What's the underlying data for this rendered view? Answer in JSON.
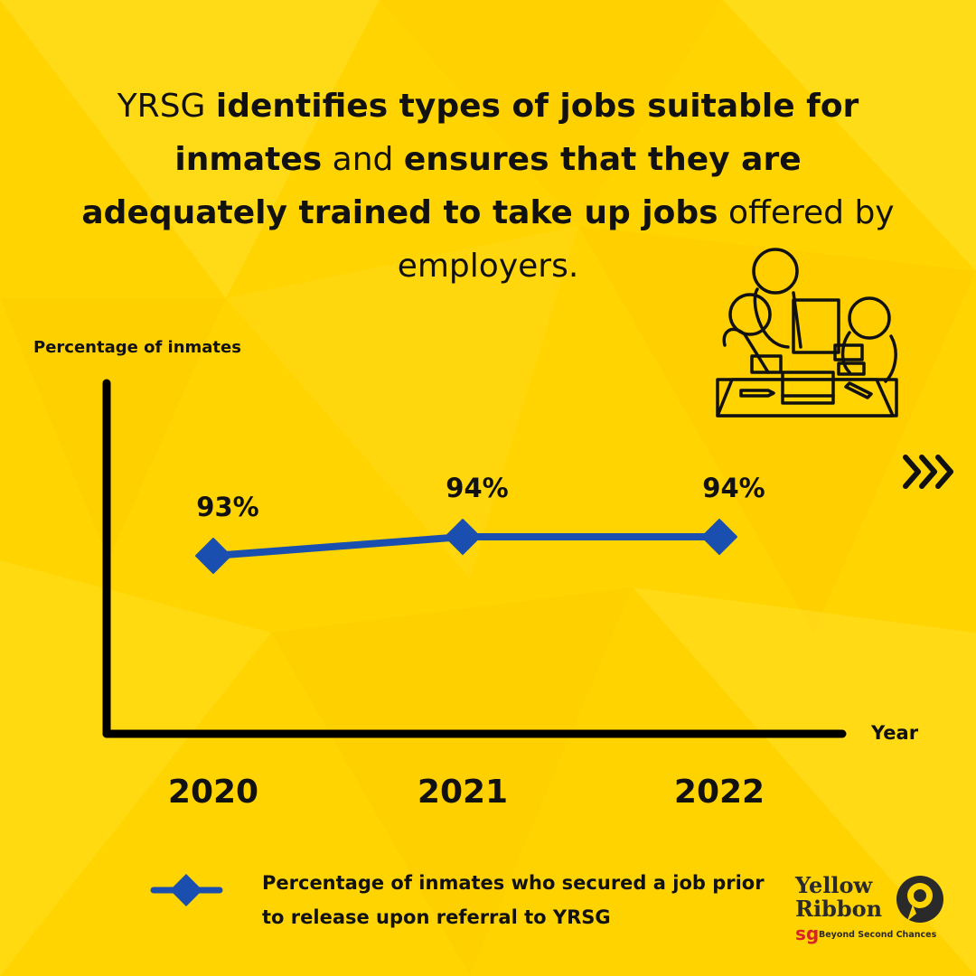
{
  "headline": {
    "part1": "YRSG ",
    "part2": "identifies types of jobs suitable for inmates",
    "part3": " and ",
    "part4": "ensures that they are adequately trained to take up jobs",
    "part5": " offered by employers."
  },
  "chart_data": {
    "type": "line",
    "title": "",
    "xlabel": "Year",
    "ylabel": "Percentage of inmates",
    "categories": [
      "2020",
      "2021",
      "2022"
    ],
    "series": [
      {
        "name": "Percentage of inmates who secured a job prior to release upon referral to YRSG",
        "values": [
          93,
          94,
          94
        ],
        "data_labels": [
          "93%",
          "94%",
          "94%"
        ],
        "color": "#1a4fb0"
      }
    ],
    "grid": false,
    "legend": "bottom"
  },
  "legend": {
    "text": "Percentage of inmates who secured a job prior to release upon referral to YRSG"
  },
  "navigation": {
    "next_icon": "triple-chevron-right-icon"
  },
  "logo": {
    "line1": "Yellow",
    "line2": "Ribbon",
    "sg": "sg",
    "tagline": "Beyond Second Chances"
  },
  "colors": {
    "background": "#ffd400",
    "accent": "#1a4fb0",
    "text": "#111111",
    "logo_red": "#d8232a"
  }
}
